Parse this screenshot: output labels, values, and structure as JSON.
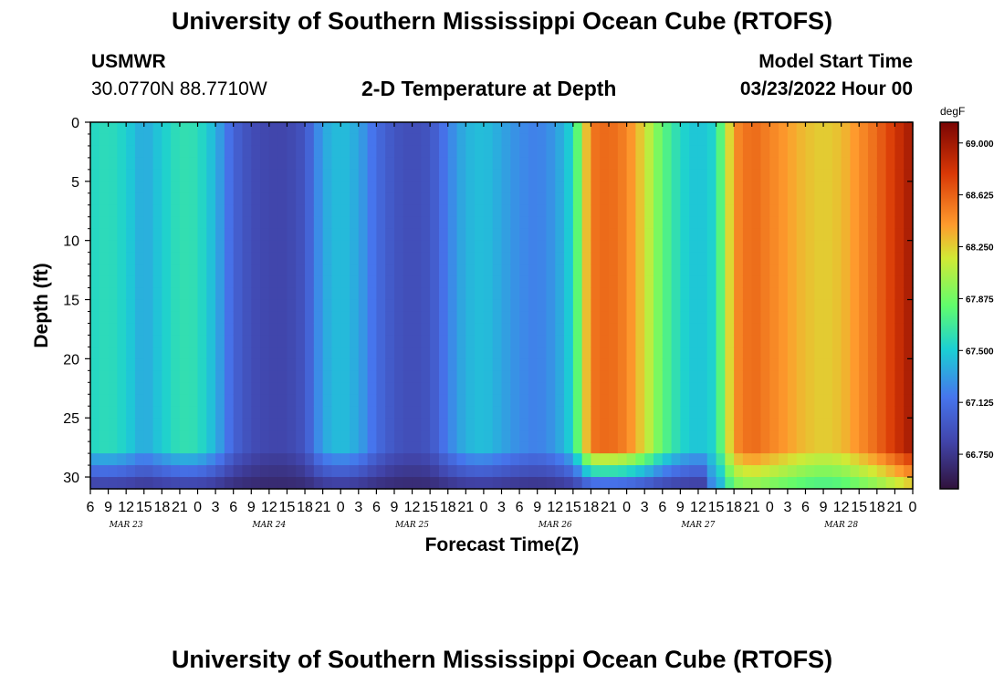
{
  "title": "University of Southern Mississippi Ocean Cube (RTOFS)",
  "station": "USMWR",
  "coords": "30.0770N  88.7710W",
  "plot_title": "2-D Temperature at Depth",
  "model_start_label": "Model Start Time",
  "model_start_value": "03/23/2022 Hour 00",
  "footer_title": "University of Southern Mississippi Ocean Cube (RTOFS)",
  "chart_data": {
    "type": "heatmap",
    "title": "2-D Temperature at Depth",
    "xlabel": "Forecast Time(Z)",
    "ylabel": "Depth (ft)",
    "colorbar_unit": "degF",
    "colorbar_ticks": [
      "66.750",
      "67.125",
      "67.500",
      "67.875",
      "68.250",
      "68.625",
      "69.000"
    ],
    "colorbar_range": [
      66.5,
      69.15
    ],
    "y_ticks": [
      "0",
      "5",
      "10",
      "15",
      "20",
      "25",
      "30"
    ],
    "ylim": [
      0,
      31
    ],
    "y_reversed": true,
    "x_tick_labels": [
      "6",
      "9",
      "12",
      "15",
      "18",
      "21",
      "0",
      "3",
      "6",
      "9",
      "12",
      "15",
      "18",
      "21",
      "0",
      "3",
      "6",
      "9",
      "12",
      "15",
      "18",
      "21",
      "0",
      "3",
      "6",
      "9",
      "12",
      "15",
      "18",
      "21",
      "0",
      "3",
      "6",
      "9",
      "12",
      "15",
      "18",
      "21",
      "0",
      "3",
      "6",
      "9",
      "12",
      "15",
      "18",
      "21",
      "0"
    ],
    "date_labels": [
      "MAR 23",
      "MAR 24",
      "MAR 25",
      "MAR 26",
      "MAR 27",
      "MAR 28"
    ],
    "xlim_hours": [
      6,
      144
    ],
    "surface_temperature_by_hour": [
      {
        "h": 6,
        "v": 67.55
      },
      {
        "h": 9,
        "v": 67.6
      },
      {
        "h": 12,
        "v": 67.52
      },
      {
        "h": 15,
        "v": 67.35
      },
      {
        "h": 18,
        "v": 67.5
      },
      {
        "h": 21,
        "v": 67.62
      },
      {
        "h": 24,
        "v": 67.6
      },
      {
        "h": 27,
        "v": 67.4
      },
      {
        "h": 30,
        "v": 67.05
      },
      {
        "h": 33,
        "v": 66.9
      },
      {
        "h": 36,
        "v": 66.85
      },
      {
        "h": 39,
        "v": 66.85
      },
      {
        "h": 42,
        "v": 66.95
      },
      {
        "h": 45,
        "v": 67.35
      },
      {
        "h": 48,
        "v": 67.45
      },
      {
        "h": 51,
        "v": 67.35
      },
      {
        "h": 54,
        "v": 67.1
      },
      {
        "h": 57,
        "v": 66.95
      },
      {
        "h": 60,
        "v": 66.9
      },
      {
        "h": 63,
        "v": 66.95
      },
      {
        "h": 66,
        "v": 67.2
      },
      {
        "h": 69,
        "v": 67.4
      },
      {
        "h": 72,
        "v": 67.45
      },
      {
        "h": 75,
        "v": 67.35
      },
      {
        "h": 78,
        "v": 67.25
      },
      {
        "h": 81,
        "v": 67.2
      },
      {
        "h": 84,
        "v": 67.3
      },
      {
        "h": 87,
        "v": 67.55
      },
      {
        "h": 90,
        "v": 68.55
      },
      {
        "h": 93,
        "v": 68.6
      },
      {
        "h": 96,
        "v": 68.5
      },
      {
        "h": 99,
        "v": 68.2
      },
      {
        "h": 102,
        "v": 67.8
      },
      {
        "h": 105,
        "v": 67.55
      },
      {
        "h": 108,
        "v": 67.45
      },
      {
        "h": 111,
        "v": 67.55
      },
      {
        "h": 114,
        "v": 68.45
      },
      {
        "h": 117,
        "v": 68.6
      },
      {
        "h": 120,
        "v": 68.5
      },
      {
        "h": 123,
        "v": 68.4
      },
      {
        "h": 126,
        "v": 68.3
      },
      {
        "h": 129,
        "v": 68.25
      },
      {
        "h": 132,
        "v": 68.3
      },
      {
        "h": 135,
        "v": 68.45
      },
      {
        "h": 138,
        "v": 68.6
      },
      {
        "h": 141,
        "v": 68.8
      },
      {
        "h": 144,
        "v": 69.0
      }
    ]
  }
}
